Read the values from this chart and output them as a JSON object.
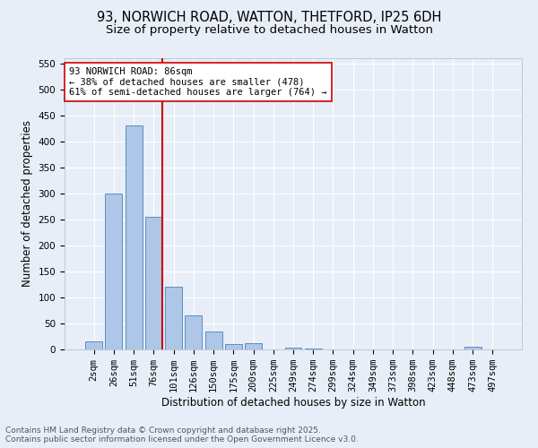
{
  "title_line1": "93, NORWICH ROAD, WATTON, THETFORD, IP25 6DH",
  "title_line2": "Size of property relative to detached houses in Watton",
  "xlabel": "Distribution of detached houses by size in Watton",
  "ylabel": "Number of detached properties",
  "categories": [
    "2sqm",
    "26sqm",
    "51sqm",
    "76sqm",
    "101sqm",
    "126sqm",
    "150sqm",
    "175sqm",
    "200sqm",
    "225sqm",
    "249sqm",
    "274sqm",
    "299sqm",
    "324sqm",
    "349sqm",
    "373sqm",
    "398sqm",
    "423sqm",
    "448sqm",
    "473sqm",
    "497sqm"
  ],
  "values": [
    15,
    300,
    430,
    255,
    120,
    65,
    35,
    10,
    12,
    0,
    3,
    1,
    0,
    0,
    0,
    0,
    0,
    0,
    0,
    5,
    0
  ],
  "bar_color": "#aec6e8",
  "bar_edge_color": "#5a8fc2",
  "vline_position": 3.425,
  "vline_color": "#cc0000",
  "annotation_text": "93 NORWICH ROAD: 86sqm\n← 38% of detached houses are smaller (478)\n61% of semi-detached houses are larger (764) →",
  "annotation_box_facecolor": "#ffffff",
  "annotation_box_edgecolor": "#cc0000",
  "ylim": [
    0,
    560
  ],
  "yticks": [
    0,
    50,
    100,
    150,
    200,
    250,
    300,
    350,
    400,
    450,
    500,
    550
  ],
  "bg_color": "#e8eef7",
  "grid_color": "#ffffff",
  "footer_text": "Contains HM Land Registry data © Crown copyright and database right 2025.\nContains public sector information licensed under the Open Government Licence v3.0.",
  "title_fontsize": 10.5,
  "subtitle_fontsize": 9.5,
  "axis_label_fontsize": 8.5,
  "tick_fontsize": 7.5,
  "annotation_fontsize": 7.5,
  "footer_fontsize": 6.5
}
